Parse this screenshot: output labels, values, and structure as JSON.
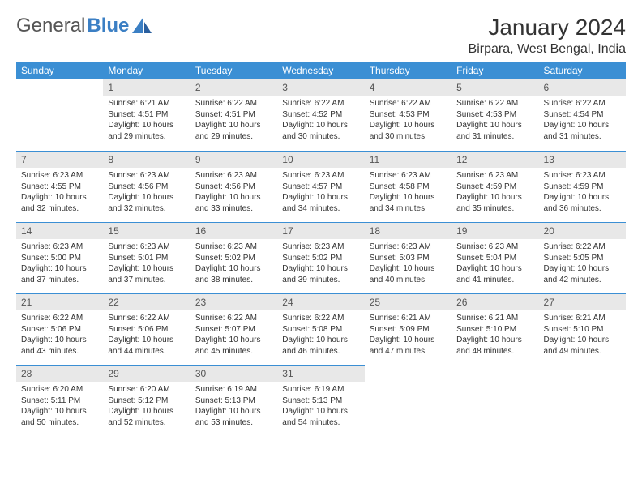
{
  "brand": {
    "name1": "General",
    "name2": "Blue"
  },
  "title": "January 2024",
  "location": "Birpara, West Bengal, India",
  "colors": {
    "header_bg": "#3b8fd4",
    "header_text": "#ffffff",
    "daynum_bg": "#e8e8e8",
    "rule": "#3b8fd4",
    "body_text": "#333333",
    "page_bg": "#ffffff"
  },
  "calendar": {
    "weekdays": [
      "Sunday",
      "Monday",
      "Tuesday",
      "Wednesday",
      "Thursday",
      "Friday",
      "Saturday"
    ],
    "start_offset": 1,
    "days": [
      {
        "n": 1,
        "sunrise": "6:21 AM",
        "sunset": "4:51 PM",
        "daylight": "10 hours and 29 minutes."
      },
      {
        "n": 2,
        "sunrise": "6:22 AM",
        "sunset": "4:51 PM",
        "daylight": "10 hours and 29 minutes."
      },
      {
        "n": 3,
        "sunrise": "6:22 AM",
        "sunset": "4:52 PM",
        "daylight": "10 hours and 30 minutes."
      },
      {
        "n": 4,
        "sunrise": "6:22 AM",
        "sunset": "4:53 PM",
        "daylight": "10 hours and 30 minutes."
      },
      {
        "n": 5,
        "sunrise": "6:22 AM",
        "sunset": "4:53 PM",
        "daylight": "10 hours and 31 minutes."
      },
      {
        "n": 6,
        "sunrise": "6:22 AM",
        "sunset": "4:54 PM",
        "daylight": "10 hours and 31 minutes."
      },
      {
        "n": 7,
        "sunrise": "6:23 AM",
        "sunset": "4:55 PM",
        "daylight": "10 hours and 32 minutes."
      },
      {
        "n": 8,
        "sunrise": "6:23 AM",
        "sunset": "4:56 PM",
        "daylight": "10 hours and 32 minutes."
      },
      {
        "n": 9,
        "sunrise": "6:23 AM",
        "sunset": "4:56 PM",
        "daylight": "10 hours and 33 minutes."
      },
      {
        "n": 10,
        "sunrise": "6:23 AM",
        "sunset": "4:57 PM",
        "daylight": "10 hours and 34 minutes."
      },
      {
        "n": 11,
        "sunrise": "6:23 AM",
        "sunset": "4:58 PM",
        "daylight": "10 hours and 34 minutes."
      },
      {
        "n": 12,
        "sunrise": "6:23 AM",
        "sunset": "4:59 PM",
        "daylight": "10 hours and 35 minutes."
      },
      {
        "n": 13,
        "sunrise": "6:23 AM",
        "sunset": "4:59 PM",
        "daylight": "10 hours and 36 minutes."
      },
      {
        "n": 14,
        "sunrise": "6:23 AM",
        "sunset": "5:00 PM",
        "daylight": "10 hours and 37 minutes."
      },
      {
        "n": 15,
        "sunrise": "6:23 AM",
        "sunset": "5:01 PM",
        "daylight": "10 hours and 37 minutes."
      },
      {
        "n": 16,
        "sunrise": "6:23 AM",
        "sunset": "5:02 PM",
        "daylight": "10 hours and 38 minutes."
      },
      {
        "n": 17,
        "sunrise": "6:23 AM",
        "sunset": "5:02 PM",
        "daylight": "10 hours and 39 minutes."
      },
      {
        "n": 18,
        "sunrise": "6:23 AM",
        "sunset": "5:03 PM",
        "daylight": "10 hours and 40 minutes."
      },
      {
        "n": 19,
        "sunrise": "6:23 AM",
        "sunset": "5:04 PM",
        "daylight": "10 hours and 41 minutes."
      },
      {
        "n": 20,
        "sunrise": "6:22 AM",
        "sunset": "5:05 PM",
        "daylight": "10 hours and 42 minutes."
      },
      {
        "n": 21,
        "sunrise": "6:22 AM",
        "sunset": "5:06 PM",
        "daylight": "10 hours and 43 minutes."
      },
      {
        "n": 22,
        "sunrise": "6:22 AM",
        "sunset": "5:06 PM",
        "daylight": "10 hours and 44 minutes."
      },
      {
        "n": 23,
        "sunrise": "6:22 AM",
        "sunset": "5:07 PM",
        "daylight": "10 hours and 45 minutes."
      },
      {
        "n": 24,
        "sunrise": "6:22 AM",
        "sunset": "5:08 PM",
        "daylight": "10 hours and 46 minutes."
      },
      {
        "n": 25,
        "sunrise": "6:21 AM",
        "sunset": "5:09 PM",
        "daylight": "10 hours and 47 minutes."
      },
      {
        "n": 26,
        "sunrise": "6:21 AM",
        "sunset": "5:10 PM",
        "daylight": "10 hours and 48 minutes."
      },
      {
        "n": 27,
        "sunrise": "6:21 AM",
        "sunset": "5:10 PM",
        "daylight": "10 hours and 49 minutes."
      },
      {
        "n": 28,
        "sunrise": "6:20 AM",
        "sunset": "5:11 PM",
        "daylight": "10 hours and 50 minutes."
      },
      {
        "n": 29,
        "sunrise": "6:20 AM",
        "sunset": "5:12 PM",
        "daylight": "10 hours and 52 minutes."
      },
      {
        "n": 30,
        "sunrise": "6:19 AM",
        "sunset": "5:13 PM",
        "daylight": "10 hours and 53 minutes."
      },
      {
        "n": 31,
        "sunrise": "6:19 AM",
        "sunset": "5:13 PM",
        "daylight": "10 hours and 54 minutes."
      }
    ],
    "labels": {
      "sunrise": "Sunrise: ",
      "sunset": "Sunset: ",
      "daylight": "Daylight: "
    }
  }
}
